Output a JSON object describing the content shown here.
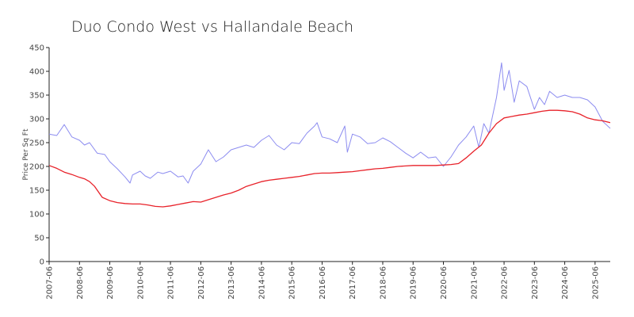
{
  "chart_data": {
    "type": "line",
    "title": "Duo Condo West vs Hallandale Beach",
    "ylabel": "Price Per Sq Ft",
    "xlabel": "",
    "ylim": [
      0,
      450
    ],
    "yticks": [
      0,
      50,
      100,
      150,
      200,
      250,
      300,
      350,
      400,
      450
    ],
    "xlim": [
      "2007-06",
      "2025-12"
    ],
    "xticks": [
      "2007-06",
      "2008-06",
      "2009-06",
      "2010-06",
      "2011-06",
      "2012-06",
      "2013-06",
      "2014-06",
      "2015-06",
      "2016-06",
      "2017-06",
      "2018-06",
      "2019-06",
      "2020-06",
      "2021-06",
      "2022-06",
      "2023-06",
      "2024-06",
      "2025-06"
    ],
    "grid": false,
    "legend": "none",
    "series": [
      {
        "color": "#8c8cf0",
        "x": [
          "2007-06",
          "2007-09",
          "2007-12",
          "2008-03",
          "2008-06",
          "2008-08",
          "2008-10",
          "2009-01",
          "2009-04",
          "2009-06",
          "2009-09",
          "2009-12",
          "2010-02",
          "2010-03",
          "2010-06",
          "2010-08",
          "2010-10",
          "2011-01",
          "2011-03",
          "2011-06",
          "2011-09",
          "2011-11",
          "2012-01",
          "2012-03",
          "2012-06",
          "2012-09",
          "2012-12",
          "2013-03",
          "2013-06",
          "2013-09",
          "2013-12",
          "2014-03",
          "2014-06",
          "2014-09",
          "2014-12",
          "2015-03",
          "2015-06",
          "2015-09",
          "2015-12",
          "2016-03",
          "2016-04",
          "2016-06",
          "2016-09",
          "2016-12",
          "2017-03",
          "2017-04",
          "2017-06",
          "2017-09",
          "2017-12",
          "2018-03",
          "2018-06",
          "2018-09",
          "2018-12",
          "2019-03",
          "2019-06",
          "2019-09",
          "2019-12",
          "2020-03",
          "2020-06",
          "2020-09",
          "2020-12",
          "2021-03",
          "2021-06",
          "2021-08",
          "2021-10",
          "2021-12",
          "2022-03",
          "2022-05",
          "2022-06",
          "2022-08",
          "2022-10",
          "2022-12",
          "2023-03",
          "2023-06",
          "2023-08",
          "2023-10",
          "2023-12",
          "2024-03",
          "2024-06",
          "2024-09",
          "2024-12",
          "2025-03",
          "2025-06",
          "2025-09",
          "2025-12"
        ],
        "values": [
          268,
          265,
          288,
          262,
          255,
          245,
          250,
          228,
          225,
          210,
          195,
          178,
          165,
          182,
          190,
          180,
          175,
          188,
          185,
          190,
          178,
          180,
          165,
          190,
          205,
          235,
          210,
          220,
          235,
          240,
          245,
          240,
          255,
          265,
          245,
          235,
          250,
          248,
          270,
          285,
          292,
          262,
          258,
          250,
          285,
          230,
          268,
          262,
          248,
          250,
          260,
          252,
          240,
          228,
          218,
          230,
          218,
          220,
          200,
          220,
          245,
          262,
          285,
          240,
          290,
          270,
          345,
          418,
          360,
          402,
          335,
          380,
          368,
          320,
          345,
          330,
          358,
          345,
          350,
          345,
          345,
          340,
          325,
          295,
          280
        ]
      },
      {
        "color": "#e8222a",
        "x": [
          "2007-06",
          "2007-09",
          "2007-12",
          "2008-03",
          "2008-06",
          "2008-08",
          "2008-10",
          "2008-12",
          "2009-03",
          "2009-06",
          "2009-09",
          "2009-12",
          "2010-03",
          "2010-06",
          "2010-09",
          "2010-12",
          "2011-03",
          "2011-06",
          "2011-09",
          "2011-12",
          "2012-03",
          "2012-06",
          "2012-09",
          "2012-12",
          "2013-03",
          "2013-06",
          "2013-09",
          "2013-12",
          "2014-03",
          "2014-06",
          "2014-09",
          "2014-12",
          "2015-03",
          "2015-06",
          "2015-09",
          "2015-12",
          "2016-03",
          "2016-06",
          "2016-09",
          "2016-12",
          "2017-03",
          "2017-06",
          "2017-09",
          "2017-12",
          "2018-03",
          "2018-06",
          "2018-09",
          "2018-12",
          "2019-03",
          "2019-06",
          "2019-09",
          "2019-12",
          "2020-03",
          "2020-06",
          "2020-09",
          "2020-12",
          "2021-03",
          "2021-06",
          "2021-09",
          "2021-12",
          "2022-03",
          "2022-06",
          "2022-09",
          "2022-12",
          "2023-03",
          "2023-06",
          "2023-09",
          "2023-12",
          "2024-03",
          "2024-06",
          "2024-09",
          "2024-12",
          "2025-03",
          "2025-06",
          "2025-09",
          "2025-12"
        ],
        "values": [
          202,
          196,
          188,
          183,
          177,
          174,
          168,
          158,
          135,
          128,
          124,
          122,
          121,
          121,
          119,
          116,
          115,
          117,
          120,
          123,
          126,
          125,
          130,
          135,
          140,
          144,
          150,
          158,
          163,
          168,
          171,
          173,
          175,
          177,
          179,
          182,
          185,
          186,
          186,
          187,
          188,
          189,
          191,
          193,
          195,
          196,
          198,
          200,
          201,
          202,
          202,
          202,
          202,
          203,
          204,
          206,
          218,
          232,
          245,
          270,
          290,
          302,
          305,
          308,
          310,
          313,
          316,
          318,
          318,
          317,
          315,
          310,
          302,
          298,
          296,
          292
        ]
      }
    ]
  }
}
